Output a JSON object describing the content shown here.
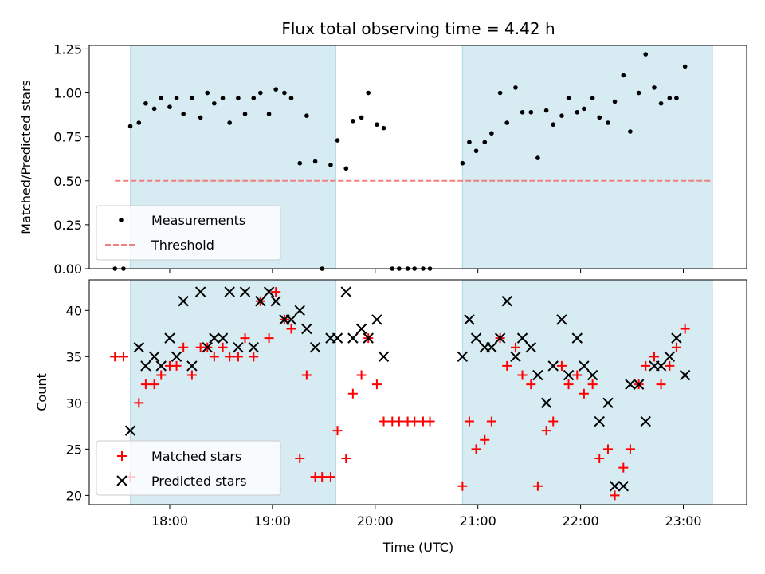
{
  "chart_data": [
    {
      "type": "scatter",
      "title": "Flux total observing time = 4.42 h",
      "xlabel": "",
      "ylabel": "Matched/Predicted stars",
      "xlim": [
        "17:13",
        "23:37"
      ],
      "ylim": [
        0,
        1.27
      ],
      "yticks": [
        "0.00",
        "0.25",
        "0.50",
        "0.75",
        "1.00",
        "1.25"
      ],
      "xticks": [
        "18:00",
        "19:00",
        "20:00",
        "21:00",
        "22:00",
        "23:00"
      ],
      "shaded_intervals": [
        [
          "17:37",
          "19:37"
        ],
        [
          "20:51",
          "23:17"
        ]
      ],
      "legend": {
        "position": "lower-left",
        "entries": [
          "Measurements",
          "Threshold"
        ]
      },
      "threshold": {
        "name": "Threshold",
        "value": 0.5,
        "x_start": "17:28",
        "x_end": "23:17",
        "color": "#f08080"
      },
      "series": [
        {
          "name": "Measurements",
          "marker": "dot",
          "color": "#000000",
          "points": [
            [
              "17:28",
              0.0
            ],
            [
              "17:33",
              0.0
            ],
            [
              "17:37",
              0.81
            ],
            [
              "17:42",
              0.83
            ],
            [
              "17:46",
              0.94
            ],
            [
              "17:51",
              0.91
            ],
            [
              "17:55",
              0.97
            ],
            [
              "18:00",
              0.92
            ],
            [
              "18:04",
              0.97
            ],
            [
              "18:08",
              0.88
            ],
            [
              "18:13",
              0.97
            ],
            [
              "18:18",
              0.86
            ],
            [
              "18:22",
              1.0
            ],
            [
              "18:26",
              0.94
            ],
            [
              "18:31",
              0.97
            ],
            [
              "18:35",
              0.83
            ],
            [
              "18:40",
              0.97
            ],
            [
              "18:44",
              0.88
            ],
            [
              "18:49",
              0.97
            ],
            [
              "18:53",
              1.0
            ],
            [
              "18:58",
              0.88
            ],
            [
              "19:02",
              1.02
            ],
            [
              "19:07",
              1.0
            ],
            [
              "19:11",
              0.97
            ],
            [
              "19:16",
              0.6
            ],
            [
              "19:20",
              0.87
            ],
            [
              "19:25",
              0.61
            ],
            [
              "19:29",
              0.0
            ],
            [
              "19:34",
              0.59
            ],
            [
              "19:38",
              0.73
            ],
            [
              "19:43",
              0.57
            ],
            [
              "19:47",
              0.84
            ],
            [
              "19:52",
              0.86
            ],
            [
              "19:56",
              1.0
            ],
            [
              "20:01",
              0.82
            ],
            [
              "20:05",
              0.8
            ],
            [
              "20:10",
              0.0
            ],
            [
              "20:14",
              0.0
            ],
            [
              "20:19",
              0.0
            ],
            [
              "20:23",
              0.0
            ],
            [
              "20:28",
              0.0
            ],
            [
              "20:32",
              0.0
            ],
            [
              "20:51",
              0.6
            ],
            [
              "20:55",
              0.72
            ],
            [
              "20:59",
              0.67
            ],
            [
              "21:04",
              0.72
            ],
            [
              "21:08",
              0.77
            ],
            [
              "21:13",
              1.0
            ],
            [
              "21:17",
              0.83
            ],
            [
              "21:22",
              1.03
            ],
            [
              "21:26",
              0.89
            ],
            [
              "21:31",
              0.89
            ],
            [
              "21:35",
              0.63
            ],
            [
              "21:40",
              0.9
            ],
            [
              "21:44",
              0.82
            ],
            [
              "21:49",
              0.87
            ],
            [
              "21:53",
              0.97
            ],
            [
              "21:58",
              0.89
            ],
            [
              "22:02",
              0.91
            ],
            [
              "22:07",
              0.97
            ],
            [
              "22:11",
              0.86
            ],
            [
              "22:16",
              0.83
            ],
            [
              "22:20",
              0.95
            ],
            [
              "22:25",
              1.1
            ],
            [
              "22:29",
              0.78
            ],
            [
              "22:34",
              1.0
            ],
            [
              "22:38",
              1.22
            ],
            [
              "22:43",
              1.03
            ],
            [
              "22:47",
              0.94
            ],
            [
              "22:52",
              0.97
            ],
            [
              "22:56",
              0.97
            ],
            [
              "23:01",
              1.15
            ]
          ]
        }
      ]
    },
    {
      "type": "scatter",
      "title": "",
      "xlabel": "Time (UTC)",
      "ylabel": "Count",
      "xlim": [
        "17:13",
        "23:37"
      ],
      "ylim": [
        19,
        43.3
      ],
      "yticks": [
        "20",
        "25",
        "30",
        "35",
        "40"
      ],
      "xticks": [
        "18:00",
        "19:00",
        "20:00",
        "21:00",
        "22:00",
        "23:00"
      ],
      "shaded_intervals": [
        [
          "17:37",
          "19:37"
        ],
        [
          "20:51",
          "23:17"
        ]
      ],
      "legend": {
        "position": "lower-left",
        "entries": [
          "Matched stars",
          "Predicted stars"
        ]
      },
      "series": [
        {
          "name": "Matched stars",
          "marker": "plus",
          "color": "#ff0000",
          "points": [
            [
              "17:28",
              35
            ],
            [
              "17:33",
              35
            ],
            [
              "17:37",
              22
            ],
            [
              "17:42",
              30
            ],
            [
              "17:46",
              32
            ],
            [
              "17:51",
              32
            ],
            [
              "17:55",
              33
            ],
            [
              "18:00",
              34
            ],
            [
              "18:04",
              34
            ],
            [
              "18:08",
              36
            ],
            [
              "18:13",
              33
            ],
            [
              "18:18",
              36
            ],
            [
              "18:22",
              36
            ],
            [
              "18:26",
              35
            ],
            [
              "18:31",
              36
            ],
            [
              "18:35",
              35
            ],
            [
              "18:40",
              35
            ],
            [
              "18:44",
              37
            ],
            [
              "18:49",
              35
            ],
            [
              "18:53",
              41
            ],
            [
              "18:58",
              37
            ],
            [
              "19:02",
              42
            ],
            [
              "19:07",
              39
            ],
            [
              "19:11",
              38
            ],
            [
              "19:16",
              24
            ],
            [
              "19:20",
              33
            ],
            [
              "19:25",
              22
            ],
            [
              "19:29",
              22
            ],
            [
              "19:34",
              22
            ],
            [
              "19:38",
              27
            ],
            [
              "19:43",
              24
            ],
            [
              "19:47",
              31
            ],
            [
              "19:52",
              33
            ],
            [
              "19:56",
              37
            ],
            [
              "20:01",
              32
            ],
            [
              "20:05",
              28
            ],
            [
              "20:10",
              28
            ],
            [
              "20:14",
              28
            ],
            [
              "20:19",
              28
            ],
            [
              "20:23",
              28
            ],
            [
              "20:28",
              28
            ],
            [
              "20:32",
              28
            ],
            [
              "20:51",
              21
            ],
            [
              "20:55",
              28
            ],
            [
              "20:59",
              25
            ],
            [
              "21:04",
              26
            ],
            [
              "21:08",
              28
            ],
            [
              "21:13",
              37
            ],
            [
              "21:17",
              34
            ],
            [
              "21:22",
              36
            ],
            [
              "21:26",
              33
            ],
            [
              "21:31",
              32
            ],
            [
              "21:35",
              21
            ],
            [
              "21:40",
              27
            ],
            [
              "21:44",
              28
            ],
            [
              "21:49",
              34
            ],
            [
              "21:53",
              32
            ],
            [
              "21:58",
              33
            ],
            [
              "22:02",
              31
            ],
            [
              "22:07",
              32
            ],
            [
              "22:11",
              24
            ],
            [
              "22:16",
              25
            ],
            [
              "22:20",
              20
            ],
            [
              "22:25",
              23
            ],
            [
              "22:29",
              25
            ],
            [
              "22:34",
              32
            ],
            [
              "22:38",
              34
            ],
            [
              "22:43",
              35
            ],
            [
              "22:47",
              32
            ],
            [
              "22:52",
              34
            ],
            [
              "22:56",
              36
            ],
            [
              "23:01",
              38
            ]
          ]
        },
        {
          "name": "Predicted stars",
          "marker": "x",
          "color": "#000000",
          "points": [
            [
              "17:37",
              27
            ],
            [
              "17:42",
              36
            ],
            [
              "17:46",
              34
            ],
            [
              "17:51",
              35
            ],
            [
              "17:55",
              34
            ],
            [
              "18:00",
              37
            ],
            [
              "18:04",
              35
            ],
            [
              "18:08",
              41
            ],
            [
              "18:13",
              34
            ],
            [
              "18:18",
              42
            ],
            [
              "18:22",
              36
            ],
            [
              "18:26",
              37
            ],
            [
              "18:31",
              37
            ],
            [
              "18:35",
              42
            ],
            [
              "18:40",
              36
            ],
            [
              "18:44",
              42
            ],
            [
              "18:49",
              36
            ],
            [
              "18:53",
              41
            ],
            [
              "18:58",
              42
            ],
            [
              "19:02",
              41
            ],
            [
              "19:07",
              39
            ],
            [
              "19:11",
              39
            ],
            [
              "19:16",
              40
            ],
            [
              "19:20",
              38
            ],
            [
              "19:25",
              36
            ],
            [
              "19:34",
              37
            ],
            [
              "19:38",
              37
            ],
            [
              "19:43",
              42
            ],
            [
              "19:47",
              37
            ],
            [
              "19:52",
              38
            ],
            [
              "19:56",
              37
            ],
            [
              "20:01",
              39
            ],
            [
              "20:05",
              35
            ],
            [
              "20:51",
              35
            ],
            [
              "20:55",
              39
            ],
            [
              "20:59",
              37
            ],
            [
              "21:04",
              36
            ],
            [
              "21:08",
              36
            ],
            [
              "21:13",
              37
            ],
            [
              "21:17",
              41
            ],
            [
              "21:22",
              35
            ],
            [
              "21:26",
              37
            ],
            [
              "21:31",
              36
            ],
            [
              "21:35",
              33
            ],
            [
              "21:40",
              30
            ],
            [
              "21:44",
              34
            ],
            [
              "21:49",
              39
            ],
            [
              "21:53",
              33
            ],
            [
              "21:58",
              37
            ],
            [
              "22:02",
              34
            ],
            [
              "22:07",
              33
            ],
            [
              "22:11",
              28
            ],
            [
              "22:16",
              30
            ],
            [
              "22:20",
              21
            ],
            [
              "22:25",
              21
            ],
            [
              "22:29",
              32
            ],
            [
              "22:34",
              32
            ],
            [
              "22:38",
              28
            ],
            [
              "22:43",
              34
            ],
            [
              "22:47",
              34
            ],
            [
              "22:52",
              35
            ],
            [
              "22:56",
              37
            ],
            [
              "23:01",
              33
            ]
          ]
        }
      ]
    }
  ]
}
